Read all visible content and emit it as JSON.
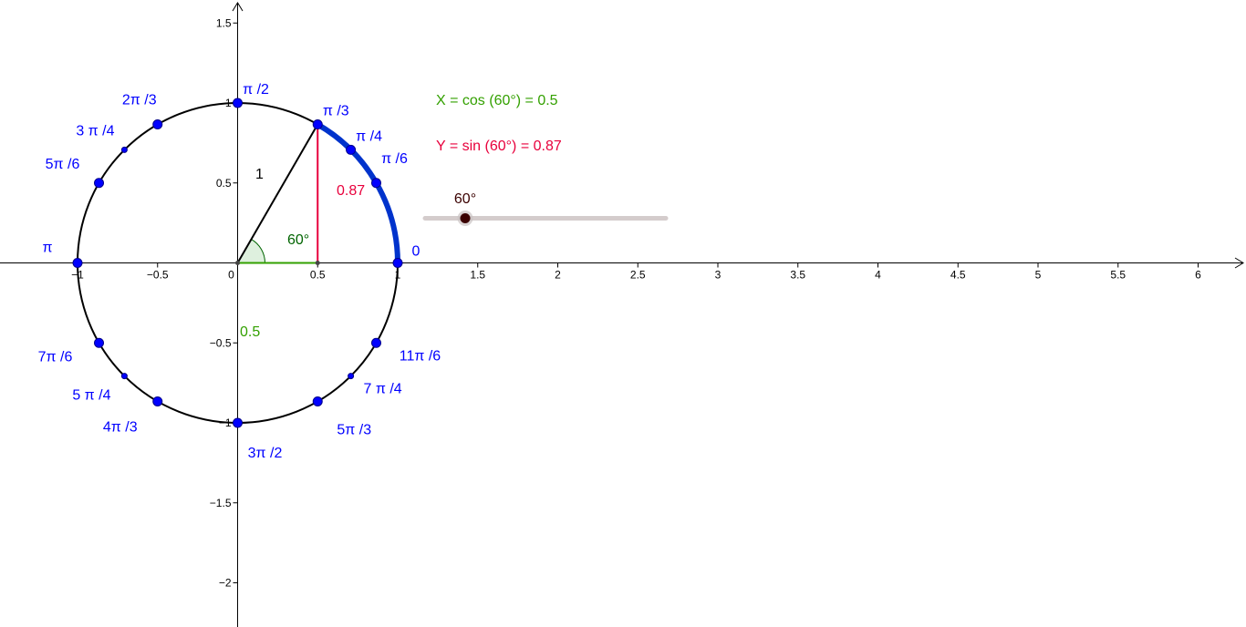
{
  "colors": {
    "circle": "#000000",
    "unit_point": "#0000ff",
    "point_label": "#0000ff",
    "arc": "#0033cc",
    "radius": "#000000",
    "cos": "#33a000",
    "sin": "#e8003c",
    "angle_label": "#006400",
    "slider_track": "#d4cccc",
    "slider_knob": "#3a0000",
    "slider_label": "#3a0000"
  },
  "axes": {
    "x_ticks": [
      "−1",
      "−0.5",
      "0",
      "0.5",
      "1",
      "1.5",
      "2",
      "2.5",
      "3",
      "3.5",
      "4",
      "4.5",
      "5",
      "5.5",
      "6"
    ],
    "y_ticks": [
      "1.5",
      "1",
      "0.5",
      "−0.5",
      "−1",
      "−1.5",
      "−2"
    ],
    "xlim": [
      -1.48,
      6.27
    ],
    "ylim": [
      -2.25,
      1.63
    ]
  },
  "unit_circle": {
    "radius": 1,
    "radius_label": "1",
    "points": [
      {
        "label": "0",
        "deg": 0,
        "size": "large"
      },
      {
        "label": "π /6",
        "deg": 30,
        "size": "large"
      },
      {
        "label": "π /4",
        "deg": 45,
        "size": "large"
      },
      {
        "label": "π /3",
        "deg": 60,
        "size": "large"
      },
      {
        "label": "π /2",
        "deg": 90,
        "size": "large"
      },
      {
        "label": "2π /3",
        "deg": 120,
        "size": "large"
      },
      {
        "label": "3 π /4",
        "deg": 135,
        "size": "small"
      },
      {
        "label": "5π /6",
        "deg": 150,
        "size": "large"
      },
      {
        "label": "π",
        "deg": 180,
        "size": "large"
      },
      {
        "label": "7π /6",
        "deg": 210,
        "size": "large"
      },
      {
        "label": "5 π /4",
        "deg": 225,
        "size": "small"
      },
      {
        "label": "4π /3",
        "deg": 240,
        "size": "large"
      },
      {
        "label": "3π /2",
        "deg": 270,
        "size": "large"
      },
      {
        "label": "5π /3",
        "deg": 300,
        "size": "large"
      },
      {
        "label": "7 π /4",
        "deg": 315,
        "size": "small"
      },
      {
        "label": "11π /6",
        "deg": 330,
        "size": "large"
      }
    ]
  },
  "angle": {
    "deg": 60,
    "label": "60°",
    "cos_value": 0.5,
    "cos_label": "0.5",
    "sin_value": 0.87,
    "sin_label": "0.87"
  },
  "info": {
    "x_text": "X = cos (60°) = 0.5",
    "y_text": "Y = sin (60°) = 0.87"
  },
  "slider": {
    "label": "60°",
    "min": 0,
    "max": 360,
    "value": 60
  }
}
